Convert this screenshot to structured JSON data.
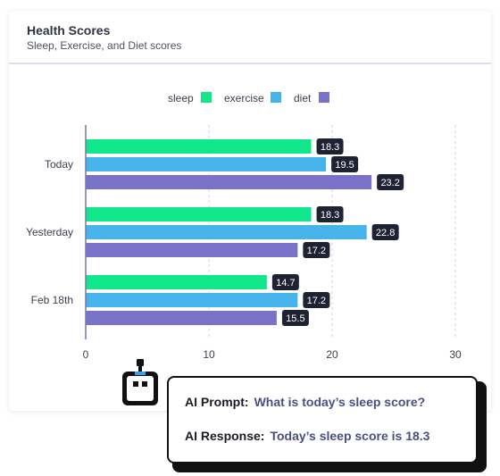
{
  "card": {
    "title": "Health Scores",
    "subtitle": "Sleep, Exercise, and Diet scores"
  },
  "chart_data": {
    "type": "bar",
    "orientation": "horizontal",
    "categories": [
      "Today",
      "Yesterday",
      "Feb 18th"
    ],
    "series": [
      {
        "name": "sleep",
        "color": "#12e68a",
        "values": [
          18.3,
          18.3,
          14.7
        ]
      },
      {
        "name": "exercise",
        "color": "#46b4ea",
        "values": [
          19.5,
          22.8,
          17.2
        ]
      },
      {
        "name": "diet",
        "color": "#7a72c9",
        "values": [
          23.2,
          17.2,
          15.5
        ]
      }
    ],
    "xlim": [
      0,
      30
    ],
    "xticks": [
      0,
      10,
      20,
      30
    ],
    "grid": "vertical dashed",
    "legend": "top-center",
    "data_labels": true
  },
  "ai": {
    "prompt_label": "AI Prompt:",
    "prompt_text": "What is today’s sleep score?",
    "response_label": "AI Response:",
    "response_text": "Today’s sleep score is 18.3"
  },
  "icons": {
    "robot": "robot-icon"
  }
}
